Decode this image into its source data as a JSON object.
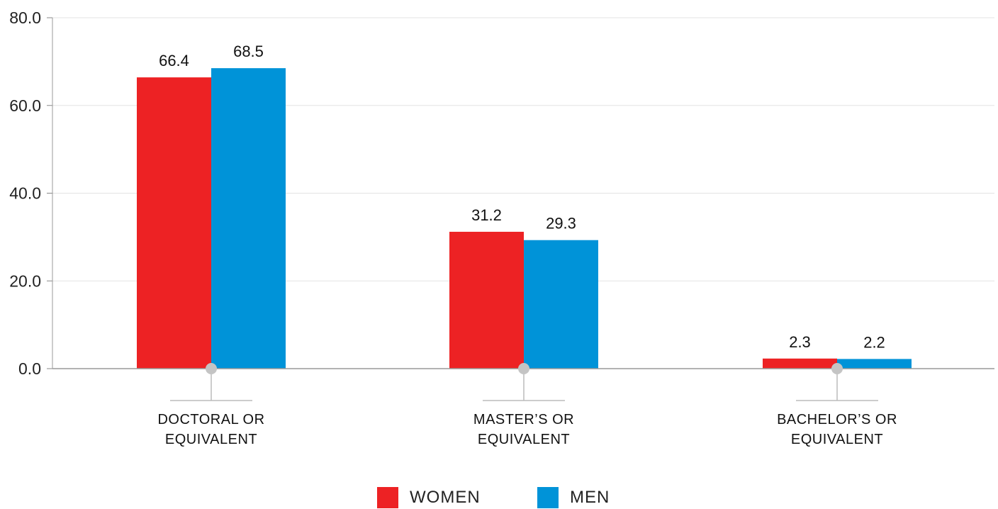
{
  "chart_data": {
    "type": "bar",
    "categories": [
      "DOCTORAL OR EQUIVALENT",
      "MASTER’S OR EQUIVALENT",
      "BACHELOR’S OR EQUIVALENT"
    ],
    "category_lines": [
      [
        "DOCTORAL OR",
        "EQUIVALENT"
      ],
      [
        "MASTER’S OR",
        "EQUIVALENT"
      ],
      [
        "BACHELOR’S OR",
        "EQUIVALENT"
      ]
    ],
    "series": [
      {
        "name": "WOMEN",
        "color": "#ED2224",
        "values": [
          66.4,
          31.2,
          2.3
        ]
      },
      {
        "name": "MEN",
        "color": "#0093D8",
        "values": [
          68.5,
          29.3,
          2.2
        ]
      }
    ],
    "value_labels": [
      [
        "66.4",
        "31.2",
        "2.3"
      ],
      [
        "68.5",
        "29.3",
        "2.2"
      ]
    ],
    "yticks": [
      "0.0",
      "20.0",
      "40.0",
      "60.0",
      "80.0"
    ],
    "ylim": [
      0,
      80
    ],
    "grid": true,
    "legend_position": "bottom-center"
  }
}
